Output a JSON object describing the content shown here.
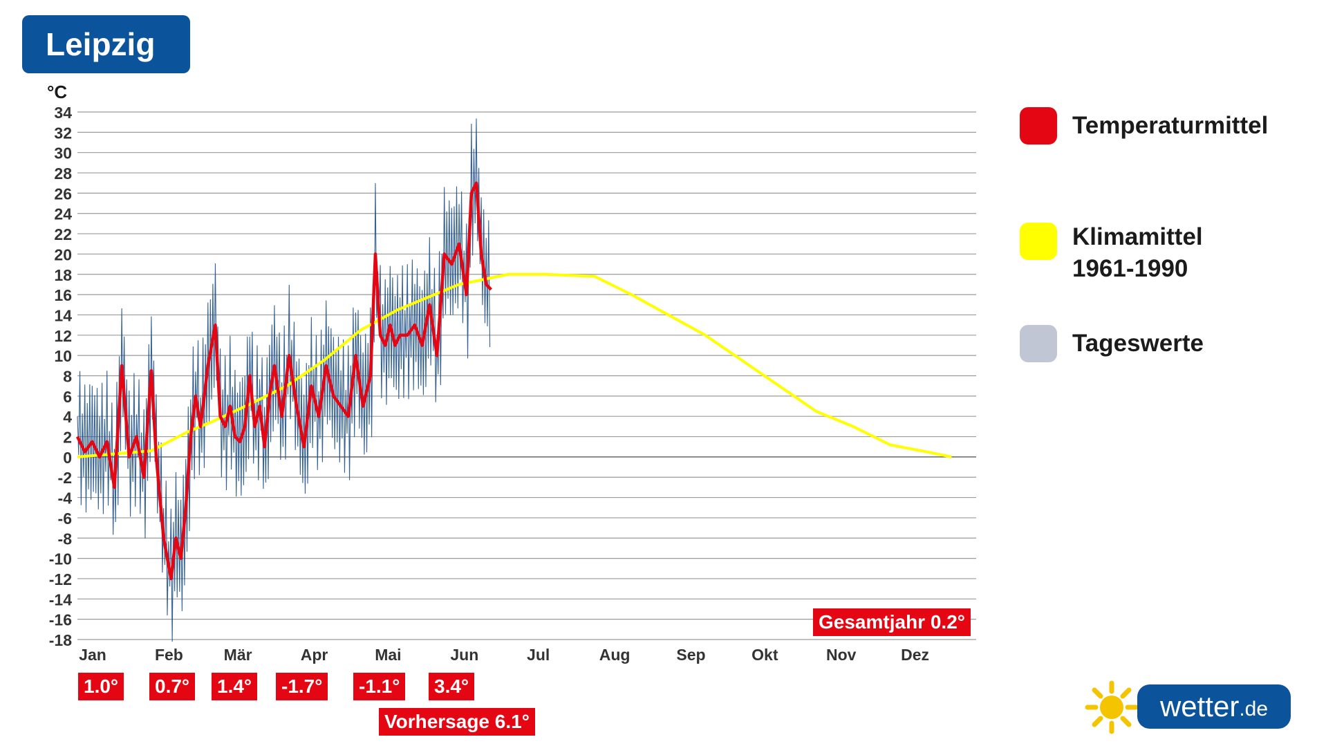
{
  "header": {
    "city": "Leipzig"
  },
  "legend": {
    "items": [
      {
        "label": "Temperaturmittel",
        "color": "#e40613"
      },
      {
        "label": "Klimamittel\n1961-1990",
        "line1": "Klimamittel",
        "line2": "1961-1990",
        "color": "#ffff00"
      },
      {
        "label": "Tageswerte",
        "color": "#c0c6d4"
      }
    ]
  },
  "month_deviations": [
    "1.0°",
    "0.7°",
    "1.4°",
    "-1.7°",
    "-1.1°",
    "3.4°"
  ],
  "forecast_label": "Vorhersage 6.1°",
  "annual_label": "Gesamtjahr 0.2°",
  "logo": {
    "name": "wetter",
    "tld": ".de",
    "sun_icon": "sun-icon"
  },
  "chart_data": {
    "type": "line",
    "title": "Leipzig",
    "ylabel": "°C",
    "ylim": [
      -18,
      34
    ],
    "ytick_step": 2,
    "xlim": [
      0,
      365
    ],
    "grid": true,
    "x_tick_labels": [
      "Jan",
      "Feb",
      "Mär",
      "Apr",
      "Mai",
      "Jun",
      "Jul",
      "Aug",
      "Sep",
      "Okt",
      "Nov",
      "Dez"
    ],
    "x_tick_days": [
      0,
      31,
      59,
      90,
      120,
      151,
      181,
      212,
      243,
      273,
      304,
      334
    ],
    "colors": {
      "mean": "#e40613",
      "climate": "#ffff00",
      "daily": "#1e4f86"
    },
    "series": [
      {
        "name": "Klimamittel 1961-1990",
        "x": [
          0,
          10,
          20,
          30,
          45,
          55,
          70,
          85,
          100,
          115,
          130,
          145,
          155,
          165,
          175,
          190,
          210,
          225,
          240,
          255,
          270,
          285,
          300,
          315,
          330,
          345,
          355
        ],
        "values": [
          0,
          0.2,
          0.4,
          0.6,
          2.5,
          3.5,
          5.2,
          7.0,
          9.5,
          12.5,
          14.5,
          16.0,
          17.0,
          17.5,
          18.0,
          18.0,
          17.8,
          16.0,
          14.0,
          12.0,
          9.5,
          7.0,
          4.5,
          3.0,
          1.2,
          0.5,
          0
        ]
      },
      {
        "name": "Temperaturmittel",
        "x": [
          0,
          3,
          6,
          9,
          12,
          15,
          18,
          21,
          24,
          27,
          30,
          32,
          35,
          38,
          40,
          42,
          44,
          46,
          48,
          50,
          53,
          56,
          58,
          60,
          62,
          64,
          66,
          68,
          70,
          72,
          74,
          76,
          78,
          80,
          83,
          86,
          89,
          92,
          95,
          98,
          101,
          104,
          107,
          110,
          113,
          116,
          119,
          121,
          123,
          125,
          127,
          129,
          131,
          134,
          137,
          140,
          143,
          146,
          149,
          152,
          155,
          158,
          160,
          162,
          164,
          166,
          168
        ],
        "values": [
          2,
          0.5,
          1.5,
          0,
          1.5,
          -3,
          9,
          0,
          2,
          -2,
          8.5,
          0,
          -8,
          -12,
          -8,
          -10,
          -5,
          2,
          6,
          3,
          9,
          13,
          4,
          3,
          5,
          2,
          1.5,
          3,
          8,
          3,
          5,
          1,
          6,
          9,
          4,
          10,
          5,
          1,
          7,
          4,
          9,
          6,
          5,
          4,
          10,
          5,
          8,
          20,
          12,
          11,
          13,
          11,
          12,
          12,
          13,
          11,
          15,
          10,
          20,
          19,
          21,
          16,
          26,
          27,
          20,
          17,
          16.5
        ]
      }
    ]
  }
}
